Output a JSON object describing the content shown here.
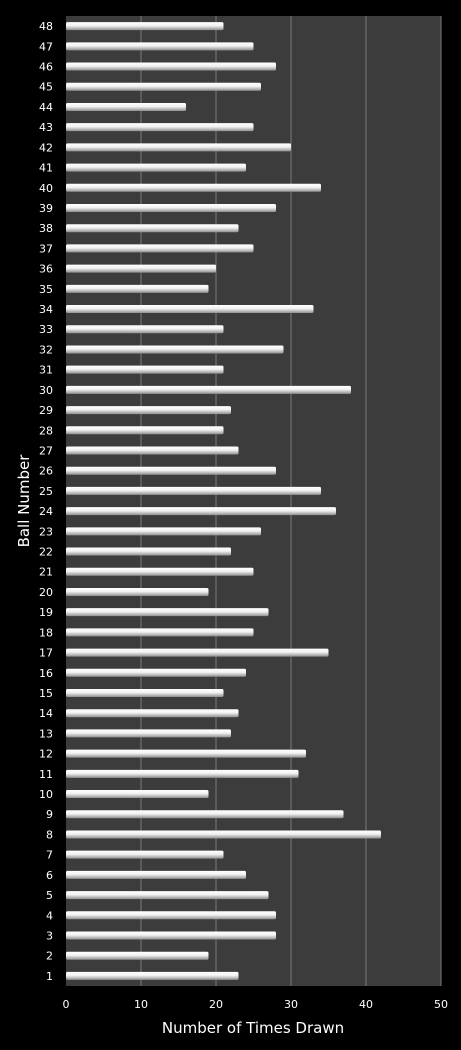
{
  "chart_data": {
    "type": "bar",
    "orientation": "horizontal",
    "title": "",
    "xlabel": "Number of Times Drawn",
    "ylabel": "Ball Number",
    "xlim": [
      0,
      50
    ],
    "xticks": [
      0,
      10,
      20,
      30,
      40,
      50
    ],
    "grid": true,
    "legend": "none",
    "colors": {
      "background": "#000000",
      "plot_area": "#3c3c3c",
      "bar": "#e6e6e6",
      "gridline": "#7a7a7a",
      "text": "#ffffff"
    },
    "categories": [
      "1",
      "2",
      "3",
      "4",
      "5",
      "6",
      "7",
      "8",
      "9",
      "10",
      "11",
      "12",
      "13",
      "14",
      "15",
      "16",
      "17",
      "18",
      "19",
      "20",
      "21",
      "22",
      "23",
      "24",
      "25",
      "26",
      "27",
      "28",
      "29",
      "30",
      "31",
      "32",
      "33",
      "34",
      "35",
      "36",
      "37",
      "38",
      "39",
      "40",
      "41",
      "42",
      "43",
      "44",
      "45",
      "46",
      "47",
      "48"
    ],
    "values": [
      23,
      19,
      28,
      28,
      27,
      24,
      21,
      42,
      37,
      19,
      31,
      32,
      22,
      23,
      21,
      24,
      35,
      25,
      27,
      19,
      25,
      22,
      26,
      36,
      34,
      28,
      23,
      21,
      22,
      38,
      21,
      29,
      21,
      33,
      19,
      20,
      25,
      23,
      28,
      34,
      24,
      30,
      25,
      16,
      26,
      28,
      25,
      21
    ]
  }
}
